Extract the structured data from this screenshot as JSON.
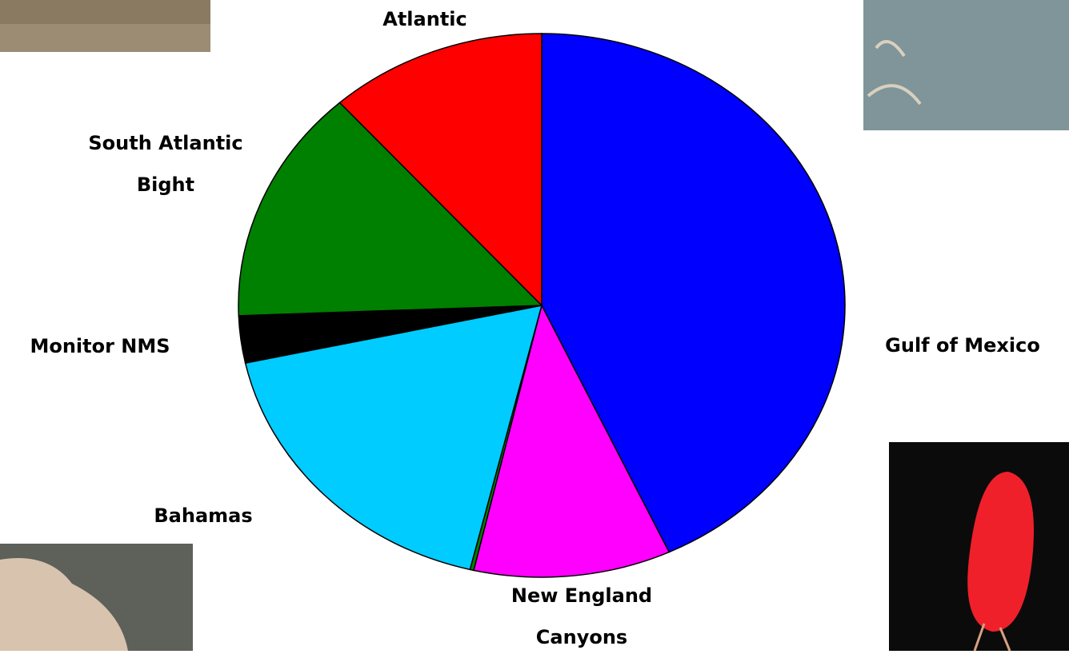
{
  "chart_data": {
    "type": "pie",
    "categories": [
      "Gulf of Mexico",
      "New England Canyons",
      null,
      "Bahamas",
      "Monitor NMS",
      "South Atlantic Bight",
      "Atlantic"
    ],
    "values": [
      43.1,
      10.5,
      0.2,
      17.8,
      2.8,
      14.0,
      11.6
    ],
    "colors": [
      "#0000ff",
      "#ff00ff",
      "#008000",
      "#00ccff",
      "#000000",
      "#008000",
      "#ff0000"
    ]
  }
}
